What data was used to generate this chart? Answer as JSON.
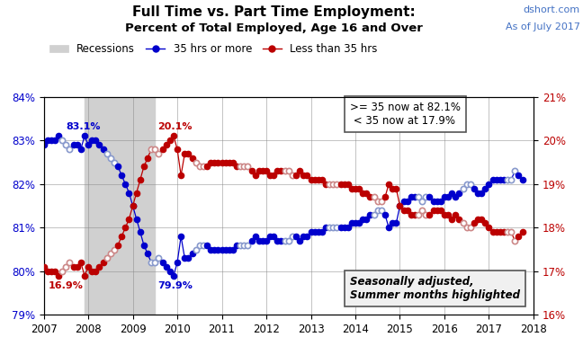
{
  "title_line1": "Full Time vs. Part Time Employment:",
  "title_line2": "Percent of Total Employed, Age 16 and Over",
  "watermark_line1": "dshort.com",
  "watermark_line2": "As of July 2017",
  "recession_start": 2007.917,
  "recession_end": 2009.5,
  "ylim_left": [
    79.0,
    84.0
  ],
  "ylim_right": [
    16.0,
    21.0
  ],
  "xlim": [
    2007.0,
    2018.0
  ],
  "box1_text": ">= 35 now at 82.1%\n < 35 now at 17.9%",
  "box2_text": "Seasonally adjusted,\nSummer months highlighted",
  "blue_color": "#0000CC",
  "blue_summer_color": "#8899CC",
  "red_color": "#BB0000",
  "red_summer_color": "#CC8888",
  "recession_color": "#D0D0D0",
  "full_time_data": [
    [
      2007.0,
      82.9
    ],
    [
      2007.083,
      83.0
    ],
    [
      2007.167,
      83.0
    ],
    [
      2007.25,
      83.0
    ],
    [
      2007.333,
      83.1
    ],
    [
      2007.417,
      83.0
    ],
    [
      2007.5,
      82.9
    ],
    [
      2007.583,
      82.8
    ],
    [
      2007.667,
      82.9
    ],
    [
      2007.75,
      82.9
    ],
    [
      2007.833,
      82.8
    ],
    [
      2007.917,
      83.1
    ],
    [
      2008.0,
      82.9
    ],
    [
      2008.083,
      83.0
    ],
    [
      2008.167,
      83.0
    ],
    [
      2008.25,
      82.9
    ],
    [
      2008.333,
      82.8
    ],
    [
      2008.417,
      82.7
    ],
    [
      2008.5,
      82.6
    ],
    [
      2008.583,
      82.5
    ],
    [
      2008.667,
      82.4
    ],
    [
      2008.75,
      82.2
    ],
    [
      2008.833,
      82.0
    ],
    [
      2008.917,
      81.8
    ],
    [
      2009.0,
      81.5
    ],
    [
      2009.083,
      81.2
    ],
    [
      2009.167,
      80.9
    ],
    [
      2009.25,
      80.6
    ],
    [
      2009.333,
      80.4
    ],
    [
      2009.417,
      80.2
    ],
    [
      2009.5,
      80.2
    ],
    [
      2009.583,
      80.3
    ],
    [
      2009.667,
      80.2
    ],
    [
      2009.75,
      80.1
    ],
    [
      2009.833,
      80.0
    ],
    [
      2009.917,
      79.9
    ],
    [
      2010.0,
      80.2
    ],
    [
      2010.083,
      80.8
    ],
    [
      2010.167,
      80.3
    ],
    [
      2010.25,
      80.3
    ],
    [
      2010.333,
      80.4
    ],
    [
      2010.417,
      80.5
    ],
    [
      2010.5,
      80.6
    ],
    [
      2010.583,
      80.6
    ],
    [
      2010.667,
      80.6
    ],
    [
      2010.75,
      80.5
    ],
    [
      2010.833,
      80.5
    ],
    [
      2010.917,
      80.5
    ],
    [
      2011.0,
      80.5
    ],
    [
      2011.083,
      80.5
    ],
    [
      2011.167,
      80.5
    ],
    [
      2011.25,
      80.5
    ],
    [
      2011.333,
      80.6
    ],
    [
      2011.417,
      80.6
    ],
    [
      2011.5,
      80.6
    ],
    [
      2011.583,
      80.6
    ],
    [
      2011.667,
      80.7
    ],
    [
      2011.75,
      80.8
    ],
    [
      2011.833,
      80.7
    ],
    [
      2011.917,
      80.7
    ],
    [
      2012.0,
      80.7
    ],
    [
      2012.083,
      80.8
    ],
    [
      2012.167,
      80.8
    ],
    [
      2012.25,
      80.7
    ],
    [
      2012.333,
      80.7
    ],
    [
      2012.417,
      80.7
    ],
    [
      2012.5,
      80.7
    ],
    [
      2012.583,
      80.8
    ],
    [
      2012.667,
      80.8
    ],
    [
      2012.75,
      80.7
    ],
    [
      2012.833,
      80.8
    ],
    [
      2012.917,
      80.8
    ],
    [
      2013.0,
      80.9
    ],
    [
      2013.083,
      80.9
    ],
    [
      2013.167,
      80.9
    ],
    [
      2013.25,
      80.9
    ],
    [
      2013.333,
      81.0
    ],
    [
      2013.417,
      81.0
    ],
    [
      2013.5,
      81.0
    ],
    [
      2013.583,
      81.0
    ],
    [
      2013.667,
      81.0
    ],
    [
      2013.75,
      81.0
    ],
    [
      2013.833,
      81.0
    ],
    [
      2013.917,
      81.1
    ],
    [
      2014.0,
      81.1
    ],
    [
      2014.083,
      81.1
    ],
    [
      2014.167,
      81.2
    ],
    [
      2014.25,
      81.2
    ],
    [
      2014.333,
      81.3
    ],
    [
      2014.417,
      81.3
    ],
    [
      2014.5,
      81.4
    ],
    [
      2014.583,
      81.4
    ],
    [
      2014.667,
      81.3
    ],
    [
      2014.75,
      81.0
    ],
    [
      2014.833,
      81.1
    ],
    [
      2014.917,
      81.1
    ],
    [
      2015.0,
      81.5
    ],
    [
      2015.083,
      81.6
    ],
    [
      2015.167,
      81.6
    ],
    [
      2015.25,
      81.7
    ],
    [
      2015.333,
      81.7
    ],
    [
      2015.417,
      81.7
    ],
    [
      2015.5,
      81.6
    ],
    [
      2015.583,
      81.7
    ],
    [
      2015.667,
      81.7
    ],
    [
      2015.75,
      81.6
    ],
    [
      2015.833,
      81.6
    ],
    [
      2015.917,
      81.6
    ],
    [
      2016.0,
      81.7
    ],
    [
      2016.083,
      81.7
    ],
    [
      2016.167,
      81.8
    ],
    [
      2016.25,
      81.7
    ],
    [
      2016.333,
      81.8
    ],
    [
      2016.417,
      81.9
    ],
    [
      2016.5,
      82.0
    ],
    [
      2016.583,
      82.0
    ],
    [
      2016.667,
      81.9
    ],
    [
      2016.75,
      81.8
    ],
    [
      2016.833,
      81.8
    ],
    [
      2016.917,
      81.9
    ],
    [
      2017.0,
      82.0
    ],
    [
      2017.083,
      82.1
    ],
    [
      2017.167,
      82.1
    ],
    [
      2017.25,
      82.1
    ],
    [
      2017.333,
      82.1
    ],
    [
      2017.417,
      82.1
    ],
    [
      2017.5,
      82.1
    ],
    [
      2017.583,
      82.3
    ],
    [
      2017.667,
      82.2
    ],
    [
      2017.75,
      82.1
    ]
  ],
  "part_time_data": [
    [
      2007.0,
      17.1
    ],
    [
      2007.083,
      17.0
    ],
    [
      2007.167,
      17.0
    ],
    [
      2007.25,
      17.0
    ],
    [
      2007.333,
      16.9
    ],
    [
      2007.417,
      17.0
    ],
    [
      2007.5,
      17.1
    ],
    [
      2007.583,
      17.2
    ],
    [
      2007.667,
      17.1
    ],
    [
      2007.75,
      17.1
    ],
    [
      2007.833,
      17.2
    ],
    [
      2007.917,
      16.9
    ],
    [
      2008.0,
      17.1
    ],
    [
      2008.083,
      17.0
    ],
    [
      2008.167,
      17.0
    ],
    [
      2008.25,
      17.1
    ],
    [
      2008.333,
      17.2
    ],
    [
      2008.417,
      17.3
    ],
    [
      2008.5,
      17.4
    ],
    [
      2008.583,
      17.5
    ],
    [
      2008.667,
      17.6
    ],
    [
      2008.75,
      17.8
    ],
    [
      2008.833,
      18.0
    ],
    [
      2008.917,
      18.2
    ],
    [
      2009.0,
      18.5
    ],
    [
      2009.083,
      18.8
    ],
    [
      2009.167,
      19.1
    ],
    [
      2009.25,
      19.4
    ],
    [
      2009.333,
      19.6
    ],
    [
      2009.417,
      19.8
    ],
    [
      2009.5,
      19.8
    ],
    [
      2009.583,
      19.7
    ],
    [
      2009.667,
      19.8
    ],
    [
      2009.75,
      19.9
    ],
    [
      2009.833,
      20.0
    ],
    [
      2009.917,
      20.1
    ],
    [
      2010.0,
      19.8
    ],
    [
      2010.083,
      19.2
    ],
    [
      2010.167,
      19.7
    ],
    [
      2010.25,
      19.7
    ],
    [
      2010.333,
      19.6
    ],
    [
      2010.417,
      19.5
    ],
    [
      2010.5,
      19.4
    ],
    [
      2010.583,
      19.4
    ],
    [
      2010.667,
      19.4
    ],
    [
      2010.75,
      19.5
    ],
    [
      2010.833,
      19.5
    ],
    [
      2010.917,
      19.5
    ],
    [
      2011.0,
      19.5
    ],
    [
      2011.083,
      19.5
    ],
    [
      2011.167,
      19.5
    ],
    [
      2011.25,
      19.5
    ],
    [
      2011.333,
      19.4
    ],
    [
      2011.417,
      19.4
    ],
    [
      2011.5,
      19.4
    ],
    [
      2011.583,
      19.4
    ],
    [
      2011.667,
      19.3
    ],
    [
      2011.75,
      19.2
    ],
    [
      2011.833,
      19.3
    ],
    [
      2011.917,
      19.3
    ],
    [
      2012.0,
      19.3
    ],
    [
      2012.083,
      19.2
    ],
    [
      2012.167,
      19.2
    ],
    [
      2012.25,
      19.3
    ],
    [
      2012.333,
      19.3
    ],
    [
      2012.417,
      19.3
    ],
    [
      2012.5,
      19.3
    ],
    [
      2012.583,
      19.2
    ],
    [
      2012.667,
      19.2
    ],
    [
      2012.75,
      19.3
    ],
    [
      2012.833,
      19.2
    ],
    [
      2012.917,
      19.2
    ],
    [
      2013.0,
      19.1
    ],
    [
      2013.083,
      19.1
    ],
    [
      2013.167,
      19.1
    ],
    [
      2013.25,
      19.1
    ],
    [
      2013.333,
      19.0
    ],
    [
      2013.417,
      19.0
    ],
    [
      2013.5,
      19.0
    ],
    [
      2013.583,
      19.0
    ],
    [
      2013.667,
      19.0
    ],
    [
      2013.75,
      19.0
    ],
    [
      2013.833,
      19.0
    ],
    [
      2013.917,
      18.9
    ],
    [
      2014.0,
      18.9
    ],
    [
      2014.083,
      18.9
    ],
    [
      2014.167,
      18.8
    ],
    [
      2014.25,
      18.8
    ],
    [
      2014.333,
      18.7
    ],
    [
      2014.417,
      18.7
    ],
    [
      2014.5,
      18.6
    ],
    [
      2014.583,
      18.6
    ],
    [
      2014.667,
      18.7
    ],
    [
      2014.75,
      19.0
    ],
    [
      2014.833,
      18.9
    ],
    [
      2014.917,
      18.9
    ],
    [
      2015.0,
      18.5
    ],
    [
      2015.083,
      18.4
    ],
    [
      2015.167,
      18.4
    ],
    [
      2015.25,
      18.3
    ],
    [
      2015.333,
      18.3
    ],
    [
      2015.417,
      18.3
    ],
    [
      2015.5,
      18.4
    ],
    [
      2015.583,
      18.3
    ],
    [
      2015.667,
      18.3
    ],
    [
      2015.75,
      18.4
    ],
    [
      2015.833,
      18.4
    ],
    [
      2015.917,
      18.4
    ],
    [
      2016.0,
      18.3
    ],
    [
      2016.083,
      18.3
    ],
    [
      2016.167,
      18.2
    ],
    [
      2016.25,
      18.3
    ],
    [
      2016.333,
      18.2
    ],
    [
      2016.417,
      18.1
    ],
    [
      2016.5,
      18.0
    ],
    [
      2016.583,
      18.0
    ],
    [
      2016.667,
      18.1
    ],
    [
      2016.75,
      18.2
    ],
    [
      2016.833,
      18.2
    ],
    [
      2016.917,
      18.1
    ],
    [
      2017.0,
      18.0
    ],
    [
      2017.083,
      17.9
    ],
    [
      2017.167,
      17.9
    ],
    [
      2017.25,
      17.9
    ],
    [
      2017.333,
      17.9
    ],
    [
      2017.417,
      17.9
    ],
    [
      2017.5,
      17.9
    ],
    [
      2017.583,
      17.7
    ],
    [
      2017.667,
      17.8
    ],
    [
      2017.75,
      17.9
    ]
  ]
}
